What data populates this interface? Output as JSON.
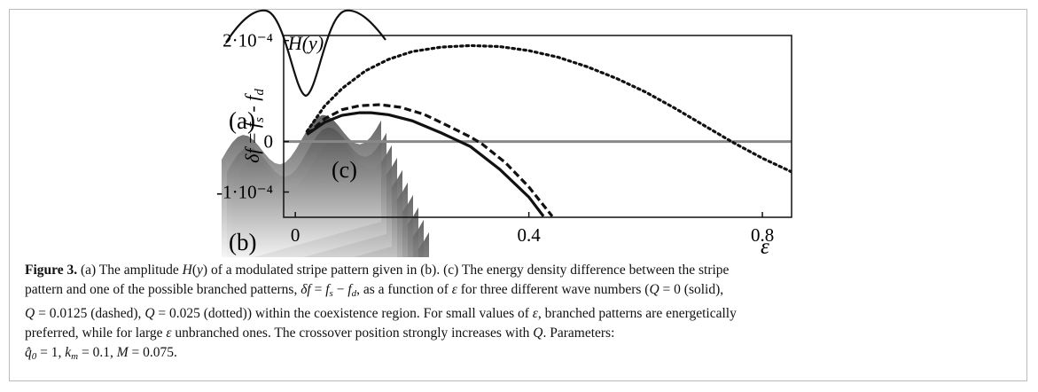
{
  "figure": {
    "panel_a": {
      "label": "(a)",
      "curve_label": "H(y)"
    },
    "panel_b": {
      "label": "(b)"
    },
    "caption": {
      "lines": [
        [
          {
            "b": "Figure 3."
          },
          " (a) The amplitude ",
          {
            "i": "H"
          },
          "(",
          {
            "i": "y"
          },
          ") of a modulated stripe pattern given in (b). (c) The energy density difference between the stripe"
        ],
        [
          "pattern and one of the possible branched patterns, ",
          {
            "i": "δf"
          },
          " = ",
          {
            "i": "f"
          },
          {
            "sub": "s"
          },
          " − ",
          {
            "i": "f"
          },
          {
            "sub": "d"
          },
          ", as a function of ",
          {
            "i": "ε"
          },
          " for three different wave numbers (",
          {
            "i": "Q"
          },
          " = 0 (solid),"
        ],
        [
          {
            "i": "Q"
          },
          " = 0.0125 (dashed), ",
          {
            "i": "Q"
          },
          " = 0.025 (dotted)) within the coexistence region. For small values of ",
          {
            "i": "ε"
          },
          ", branched patterns are energetically"
        ],
        [
          "preferred, while for large ",
          {
            "i": "ε"
          },
          " unbranched ones. The crossover position strongly increases with ",
          {
            "i": "Q"
          },
          ". Parameters:"
        ],
        [
          {
            "i": "q̂"
          },
          {
            "sub": "0"
          },
          " = 1, ",
          {
            "i": "k"
          },
          {
            "sub": "m"
          },
          " = 0.1, ",
          {
            "i": "M"
          },
          " = 0.075."
        ]
      ]
    }
  },
  "chart_data": {
    "type": "line",
    "panel_label": "(c)",
    "xlabel": "ε",
    "ylabel": [
      {
        "i": "δf"
      },
      " = ",
      {
        "i": "f"
      },
      {
        "sub": "s"
      },
      " - ",
      {
        "i": "f"
      },
      {
        "sub": "d"
      }
    ],
    "xlim": [
      -0.02,
      0.85
    ],
    "xticks": [
      0,
      0.4,
      0.8
    ],
    "ylim": [
      -0.00015,
      0.00021
    ],
    "yticks": [
      {
        "value": -0.0001,
        "label": "-1·10⁻⁴"
      },
      0,
      {
        "value": 0.0002,
        "label": "2·10⁻⁴"
      }
    ],
    "zero_line": true,
    "series": [
      {
        "color": "#111111",
        "dash": "solid",
        "x": [
          0.02,
          0.05,
          0.08,
          0.11,
          0.13,
          0.16,
          0.2,
          0.25,
          0.3,
          0.35,
          0.4,
          0.425
        ],
        "values": [
          1.4e-05,
          3.8e-05,
          5.2e-05,
          5.7e-05,
          5.7e-05,
          5.3e-05,
          4.1e-05,
          1.7e-05,
          -1e-05,
          -5.5e-05,
          -0.00011,
          -0.000148
        ]
      },
      {
        "color": "#111111",
        "dash": "dashed",
        "x": [
          0.02,
          0.05,
          0.08,
          0.11,
          0.145,
          0.18,
          0.22,
          0.26,
          0.3,
          0.32,
          0.36,
          0.4,
          0.44
        ],
        "values": [
          1.4e-05,
          4.5e-05,
          6.3e-05,
          7.1e-05,
          7.3e-05,
          6.8e-05,
          5.4e-05,
          3.2e-05,
          9e-06,
          -5e-06,
          -4.2e-05,
          -9e-05,
          -0.000148
        ]
      },
      {
        "color": "#111111",
        "dash": "dotted",
        "x": [
          0.02,
          0.05,
          0.08,
          0.12,
          0.16,
          0.2,
          0.25,
          0.3,
          0.35,
          0.4,
          0.45,
          0.5,
          0.55,
          0.6,
          0.65,
          0.7,
          0.75,
          0.8,
          0.85
        ],
        "values": [
          2e-05,
          7e-05,
          0.000105,
          0.00014,
          0.000163,
          0.000178,
          0.000187,
          0.00019,
          0.000188,
          0.00018,
          0.000167,
          0.000148,
          0.000125,
          9.8e-05,
          6.6e-05,
          3.2e-05,
          -2e-06,
          -3.3e-05,
          -6e-05
        ]
      }
    ]
  }
}
